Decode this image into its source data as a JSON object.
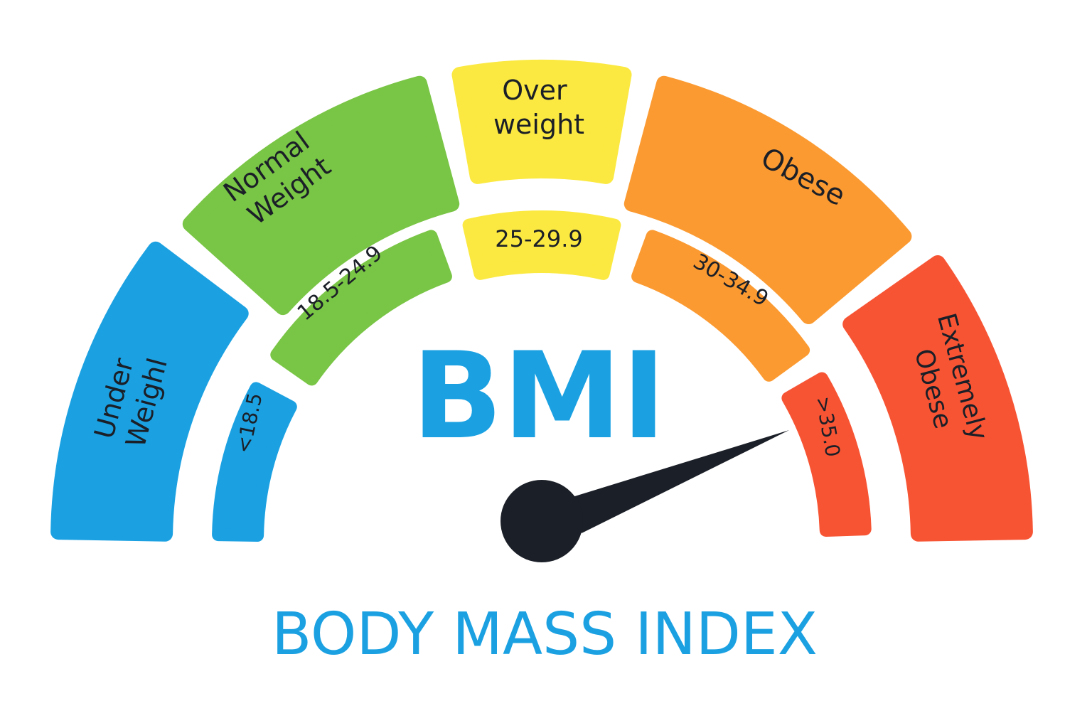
{
  "title": "BMI",
  "subtitle": "BODY MASS INDEX",
  "categories": [
    {
      "label_lines": [
        "Under",
        "Weighl"
      ],
      "range": "<18.5",
      "color": "#1ba1e2"
    },
    {
      "label_lines": [
        "Normal",
        "Weight"
      ],
      "range": "18.5-24.9",
      "color": "#79c545"
    },
    {
      "label_lines": [
        "Over",
        "weight"
      ],
      "range": "25-29.9",
      "color": "#fbe941"
    },
    {
      "label_lines": [
        "Obese"
      ],
      "range": "30-34.9",
      "color": "#fb9a31"
    },
    {
      "label_lines": [
        "Extremely",
        "Obese"
      ],
      "range": ">35.0",
      "color": "#f75434"
    }
  ],
  "needle": {
    "color": "#1b1f27",
    "points_to": "Extremely Obese"
  },
  "colors": {
    "title": "#1ba1e2",
    "text": "#1b1f27"
  }
}
